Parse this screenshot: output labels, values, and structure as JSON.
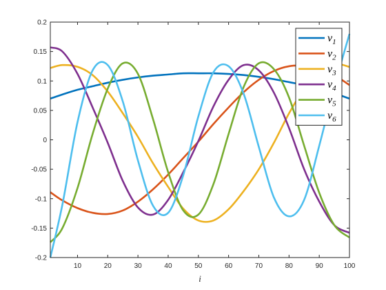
{
  "chart_data": {
    "type": "line",
    "xlabel": "i",
    "ylabel": "",
    "xlim": [
      1,
      100
    ],
    "ylim": [
      -0.2,
      0.2
    ],
    "xticks": [
      10,
      20,
      30,
      40,
      50,
      60,
      70,
      80,
      90,
      100
    ],
    "yticks": [
      -0.2,
      -0.15,
      -0.1,
      -0.05,
      0,
      0.05,
      0.1,
      0.15,
      0.2
    ],
    "xtick_labels": [
      "10",
      "20",
      "30",
      "40",
      "50",
      "60",
      "70",
      "80",
      "90",
      "100"
    ],
    "ytick_labels": [
      "-0.2",
      "-0.15",
      "-0.1",
      "-0.05",
      "0",
      "0.05",
      "0.1",
      "0.15",
      "0.2"
    ],
    "grid": false,
    "legend_position": "top-right",
    "x": [
      1,
      5,
      10,
      15,
      20,
      25,
      30,
      35,
      40,
      45,
      50,
      55,
      60,
      65,
      70,
      75,
      80,
      85,
      90,
      95,
      100
    ],
    "series": [
      {
        "name": "v1",
        "base": "v",
        "sub": "1",
        "color": "#0072BD",
        "values": [
          0.07,
          0.077,
          0.085,
          0.091,
          0.097,
          0.102,
          0.106,
          0.109,
          0.111,
          0.113,
          0.113,
          0.113,
          0.112,
          0.11,
          0.107,
          0.103,
          0.098,
          0.093,
          0.087,
          0.079,
          0.07
        ]
      },
      {
        "name": "v2",
        "base": "v",
        "sub": "2",
        "color": "#D95319",
        "values": [
          -0.089,
          -0.103,
          -0.116,
          -0.124,
          -0.126,
          -0.12,
          -0.105,
          -0.084,
          -0.059,
          -0.031,
          -0.003,
          0.027,
          0.055,
          0.081,
          0.102,
          0.117,
          0.125,
          0.126,
          0.122,
          0.11,
          0.093
        ]
      },
      {
        "name": "v3",
        "base": "v",
        "sub": "3",
        "color": "#EDB120",
        "values": [
          0.122,
          0.127,
          0.124,
          0.11,
          0.082,
          0.045,
          0.005,
          -0.04,
          -0.08,
          -0.117,
          -0.137,
          -0.137,
          -0.118,
          -0.087,
          -0.05,
          -0.005,
          0.045,
          0.087,
          0.116,
          0.129,
          0.124
        ]
      },
      {
        "name": "v4",
        "base": "v",
        "sub": "4",
        "color": "#7E2F8E",
        "values": [
          0.157,
          0.15,
          0.112,
          0.055,
          -0.005,
          -0.07,
          -0.115,
          -0.127,
          -0.102,
          -0.055,
          -0.002,
          0.057,
          0.102,
          0.127,
          0.118,
          0.08,
          0.02,
          -0.05,
          -0.105,
          -0.145,
          -0.158
        ]
      },
      {
        "name": "v5",
        "base": "v",
        "sub": "5",
        "color": "#77AC30",
        "values": [
          -0.174,
          -0.15,
          -0.082,
          0.01,
          0.087,
          0.13,
          0.112,
          0.035,
          -0.055,
          -0.12,
          -0.127,
          -0.075,
          0.01,
          0.09,
          0.13,
          0.12,
          0.072,
          -0.01,
          -0.09,
          -0.145,
          -0.166
        ]
      },
      {
        "name": "v6",
        "base": "v",
        "sub": "6",
        "color": "#4DBEEE",
        "values": [
          -0.2,
          -0.11,
          0.03,
          0.118,
          0.127,
          0.065,
          -0.035,
          -0.112,
          -0.124,
          -0.06,
          0.04,
          0.115,
          0.125,
          0.078,
          -0.012,
          -0.098,
          -0.13,
          -0.102,
          -0.01,
          0.09,
          0.18
        ]
      }
    ]
  }
}
